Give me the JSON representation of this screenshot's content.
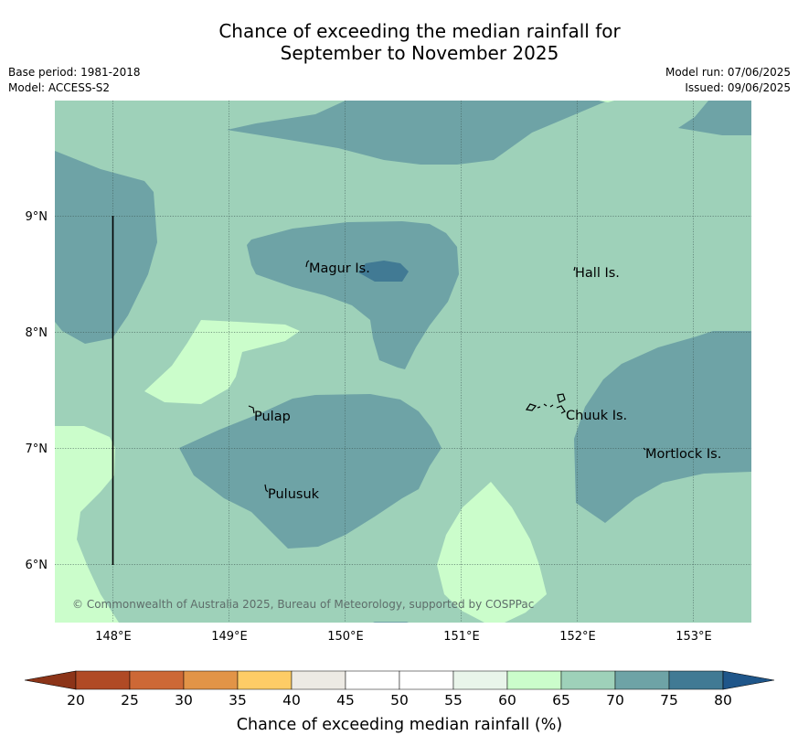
{
  "title": {
    "line1": "Chance of exceeding the median rainfall for",
    "line2": "September to November 2025"
  },
  "meta": {
    "base_period": "Base period: 1981-2018",
    "model": "Model: ACCESS-S2",
    "model_run": "Model run: 07/06/2025",
    "issued": "Issued: 09/06/2025"
  },
  "map": {
    "lon_range": [
      147.5,
      153.5
    ],
    "lat_range": [
      5.5,
      10.0
    ],
    "lon_ticks": [
      "148°E",
      "149°E",
      "150°E",
      "151°E",
      "152°E",
      "153°E"
    ],
    "lat_ticks": [
      "9°N",
      "8°N",
      "7°N",
      "6°N"
    ],
    "gridlines": true,
    "places": [
      {
        "name": "Magur Is.",
        "lon": 149.72,
        "lat": 8.55
      },
      {
        "name": "Hall Is.",
        "lon": 151.98,
        "lat": 8.52
      },
      {
        "name": "Pulap",
        "lon": 149.2,
        "lat": 7.28
      },
      {
        "name": "Chuuk Is.",
        "lon": 151.9,
        "lat": 7.3
      },
      {
        "name": "Mortlock Is.",
        "lon": 152.6,
        "lat": 6.95
      },
      {
        "name": "Pulusuk",
        "lon": 149.32,
        "lat": 6.62
      }
    ],
    "copyright": "© Commonwealth of Australia 2025, Bureau of Meteorology, supported by COSPPac",
    "colors": {
      "band_65_70": "#9ed1b9",
      "band_70_75": "#6ea3a6",
      "band_75_80": "#417a94",
      "band_60_65": "#cbfdcb"
    }
  },
  "colorbar": {
    "title": "Chance of exceeding median rainfall (%)",
    "ticks": [
      "20",
      "25",
      "30",
      "35",
      "40",
      "45",
      "50",
      "55",
      "60",
      "65",
      "70",
      "75",
      "80"
    ],
    "colors": [
      "#b04a25",
      "#cd6836",
      "#e29447",
      "#fecc66",
      "#edeae4",
      "#ffffff",
      "#ffffff",
      "#e9f5ea",
      "#cbfdcb",
      "#9ed1b9",
      "#6ea3a6",
      "#417a94"
    ],
    "under_color": "#8c3418",
    "over_color": "#1f568a"
  }
}
